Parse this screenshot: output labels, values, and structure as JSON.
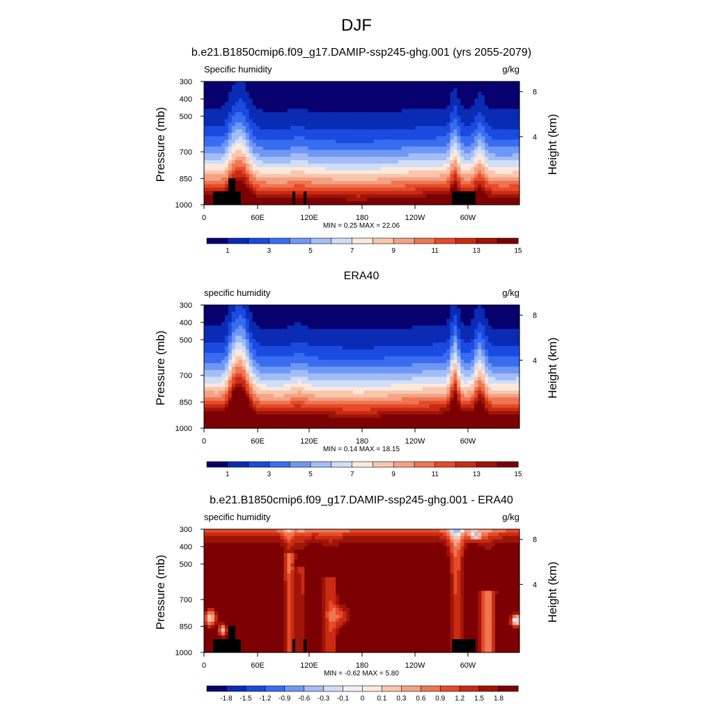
{
  "main_title": "DJF",
  "chart_data": [
    {
      "type": "heatmap",
      "title": "b.e21.B1850cmip6.f09_g17.DAMIP-ssp245-ghg.001 (yrs 2055-2079)",
      "left_label": "Specific humidity",
      "units": "g/kg",
      "ylabel": "Pressure (mb)",
      "y2label": "Height (km)",
      "pressure_ticks": [
        "300",
        "400",
        "500",
        "700",
        "850",
        "1000"
      ],
      "height_ticks": [
        "8",
        "4"
      ],
      "lon_ticks": [
        "0",
        "60E",
        "120E",
        "180",
        "120W",
        "60W"
      ],
      "stats": "MIN =   0.25  MAX =  22.06",
      "colorbar_labels": [
        "1",
        "3",
        "5",
        "7",
        "9",
        "11",
        "13",
        "15"
      ],
      "colorbar_colors": [
        "#08006e",
        "#0a2bb4",
        "#1a4ae0",
        "#3a6cf0",
        "#6f98f6",
        "#a3bdf6",
        "#d0def8",
        "#fde9dc",
        "#f8c7ae",
        "#f4a285",
        "#ee7652",
        "#e64a28",
        "#c82a12",
        "#9e1408",
        "#7c0003"
      ],
      "min": 0.25,
      "max": 22.06
    },
    {
      "type": "heatmap",
      "title": "ERA40",
      "left_label": "specific humidity",
      "units": "g/kg",
      "ylabel": "Pressure (mb)",
      "y2label": "Height (km)",
      "pressure_ticks": [
        "300",
        "400",
        "500",
        "700",
        "850",
        "1000"
      ],
      "height_ticks": [
        "8",
        "4"
      ],
      "lon_ticks": [
        "0",
        "60E",
        "120E",
        "180",
        "120W",
        "60W"
      ],
      "stats": "MIN =   0.14  MAX =  18.15",
      "colorbar_labels": [
        "1",
        "3",
        "5",
        "7",
        "9",
        "11",
        "13",
        "15"
      ],
      "colorbar_colors": [
        "#08006e",
        "#0a2bb4",
        "#1a4ae0",
        "#3a6cf0",
        "#6f98f6",
        "#a3bdf6",
        "#d0def8",
        "#fde9dc",
        "#f8c7ae",
        "#f4a285",
        "#ee7652",
        "#e64a28",
        "#c82a12",
        "#9e1408",
        "#7c0003"
      ],
      "min": 0.14,
      "max": 18.15
    },
    {
      "type": "heatmap",
      "title": "b.e21.B1850cmip6.f09_g17.DAMIP-ssp245-ghg.001 - ERA40",
      "left_label": "specific humidity",
      "units": "g/kg",
      "ylabel": "Pressure (mb)",
      "y2label": "Height (km)",
      "pressure_ticks": [
        "300",
        "400",
        "500",
        "700",
        "850",
        "1000"
      ],
      "height_ticks": [
        "8",
        "4"
      ],
      "lon_ticks": [
        "0",
        "60E",
        "120E",
        "180",
        "120W",
        "60W"
      ],
      "stats": "MIN =  -0.62  MAX =   5.80",
      "colorbar_labels": [
        "-1.8",
        "-1.5",
        "-1.2",
        "-0.9",
        "-0.6",
        "-0.3",
        "-0.1",
        "0",
        "0.1",
        "0.3",
        "0.6",
        "0.9",
        "1.2",
        "1.5",
        "1.8"
      ],
      "colorbar_colors": [
        "#08006e",
        "#0a2bb4",
        "#1a4ae0",
        "#3a6cf0",
        "#6f98f6",
        "#a3bdf6",
        "#d0def8",
        "#f2eef2",
        "#fde9dc",
        "#f8c7ae",
        "#f4a285",
        "#ee7652",
        "#e64a28",
        "#c82a12",
        "#9e1408",
        "#7c0003"
      ],
      "min": -0.62,
      "max": 5.8
    }
  ]
}
